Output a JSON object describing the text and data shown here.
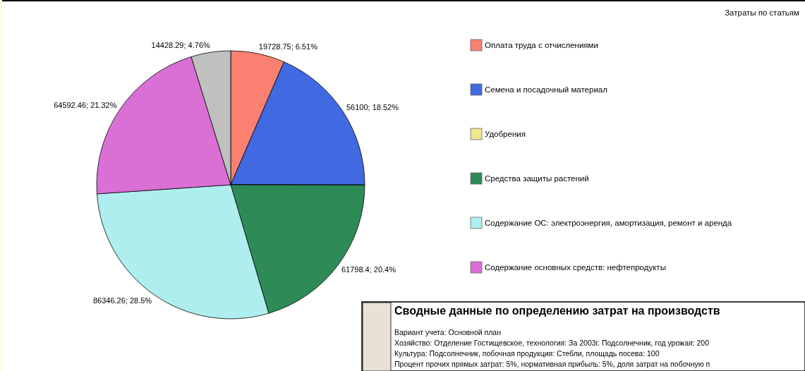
{
  "chart_data": {
    "type": "pie",
    "title": "Затраты по статьям",
    "categories": [
      "Оплата труда с отчислениями",
      "Семена и посадочный материал",
      "Удобрения",
      "Средства защиты растений",
      "Содержание ОС: электроэнергия, амортизация, ремонт и аренда",
      "Содержание основных средств: нефтепродукты",
      null
    ],
    "values": [
      19728.75,
      56100,
      0,
      61798.4,
      86346.26,
      64592.46,
      14428.29
    ],
    "colors": [
      "#fa8072",
      "#4169e1",
      "#f0e68c",
      "#2e8b57",
      "#afeeee",
      "#da70d6",
      "#c0c0c0"
    ],
    "value_labels": [
      "19728.75;  6.51%",
      "56100;  18.52%",
      null,
      "61798.4;  20.4%",
      "86346.26;  28.5%",
      "64592.46;  21.32%",
      "14428.29;  4.76%"
    ],
    "legend": "right",
    "annotations": [
      "Сводные данные по определению затрат на производств",
      "Вариант учета: Основной план",
      "Хозяйство: Отделение Гостищевское, технология: За 2003г. Подсолнечник, год урожая: 200",
      "Культура: Подсолнечник, побочная продукция: Стебли, площадь посева: 100",
      "Процент прочих прямых затрат: 5%, нормативная прибыль: 5%, доля затрат на побочную п"
    ]
  }
}
